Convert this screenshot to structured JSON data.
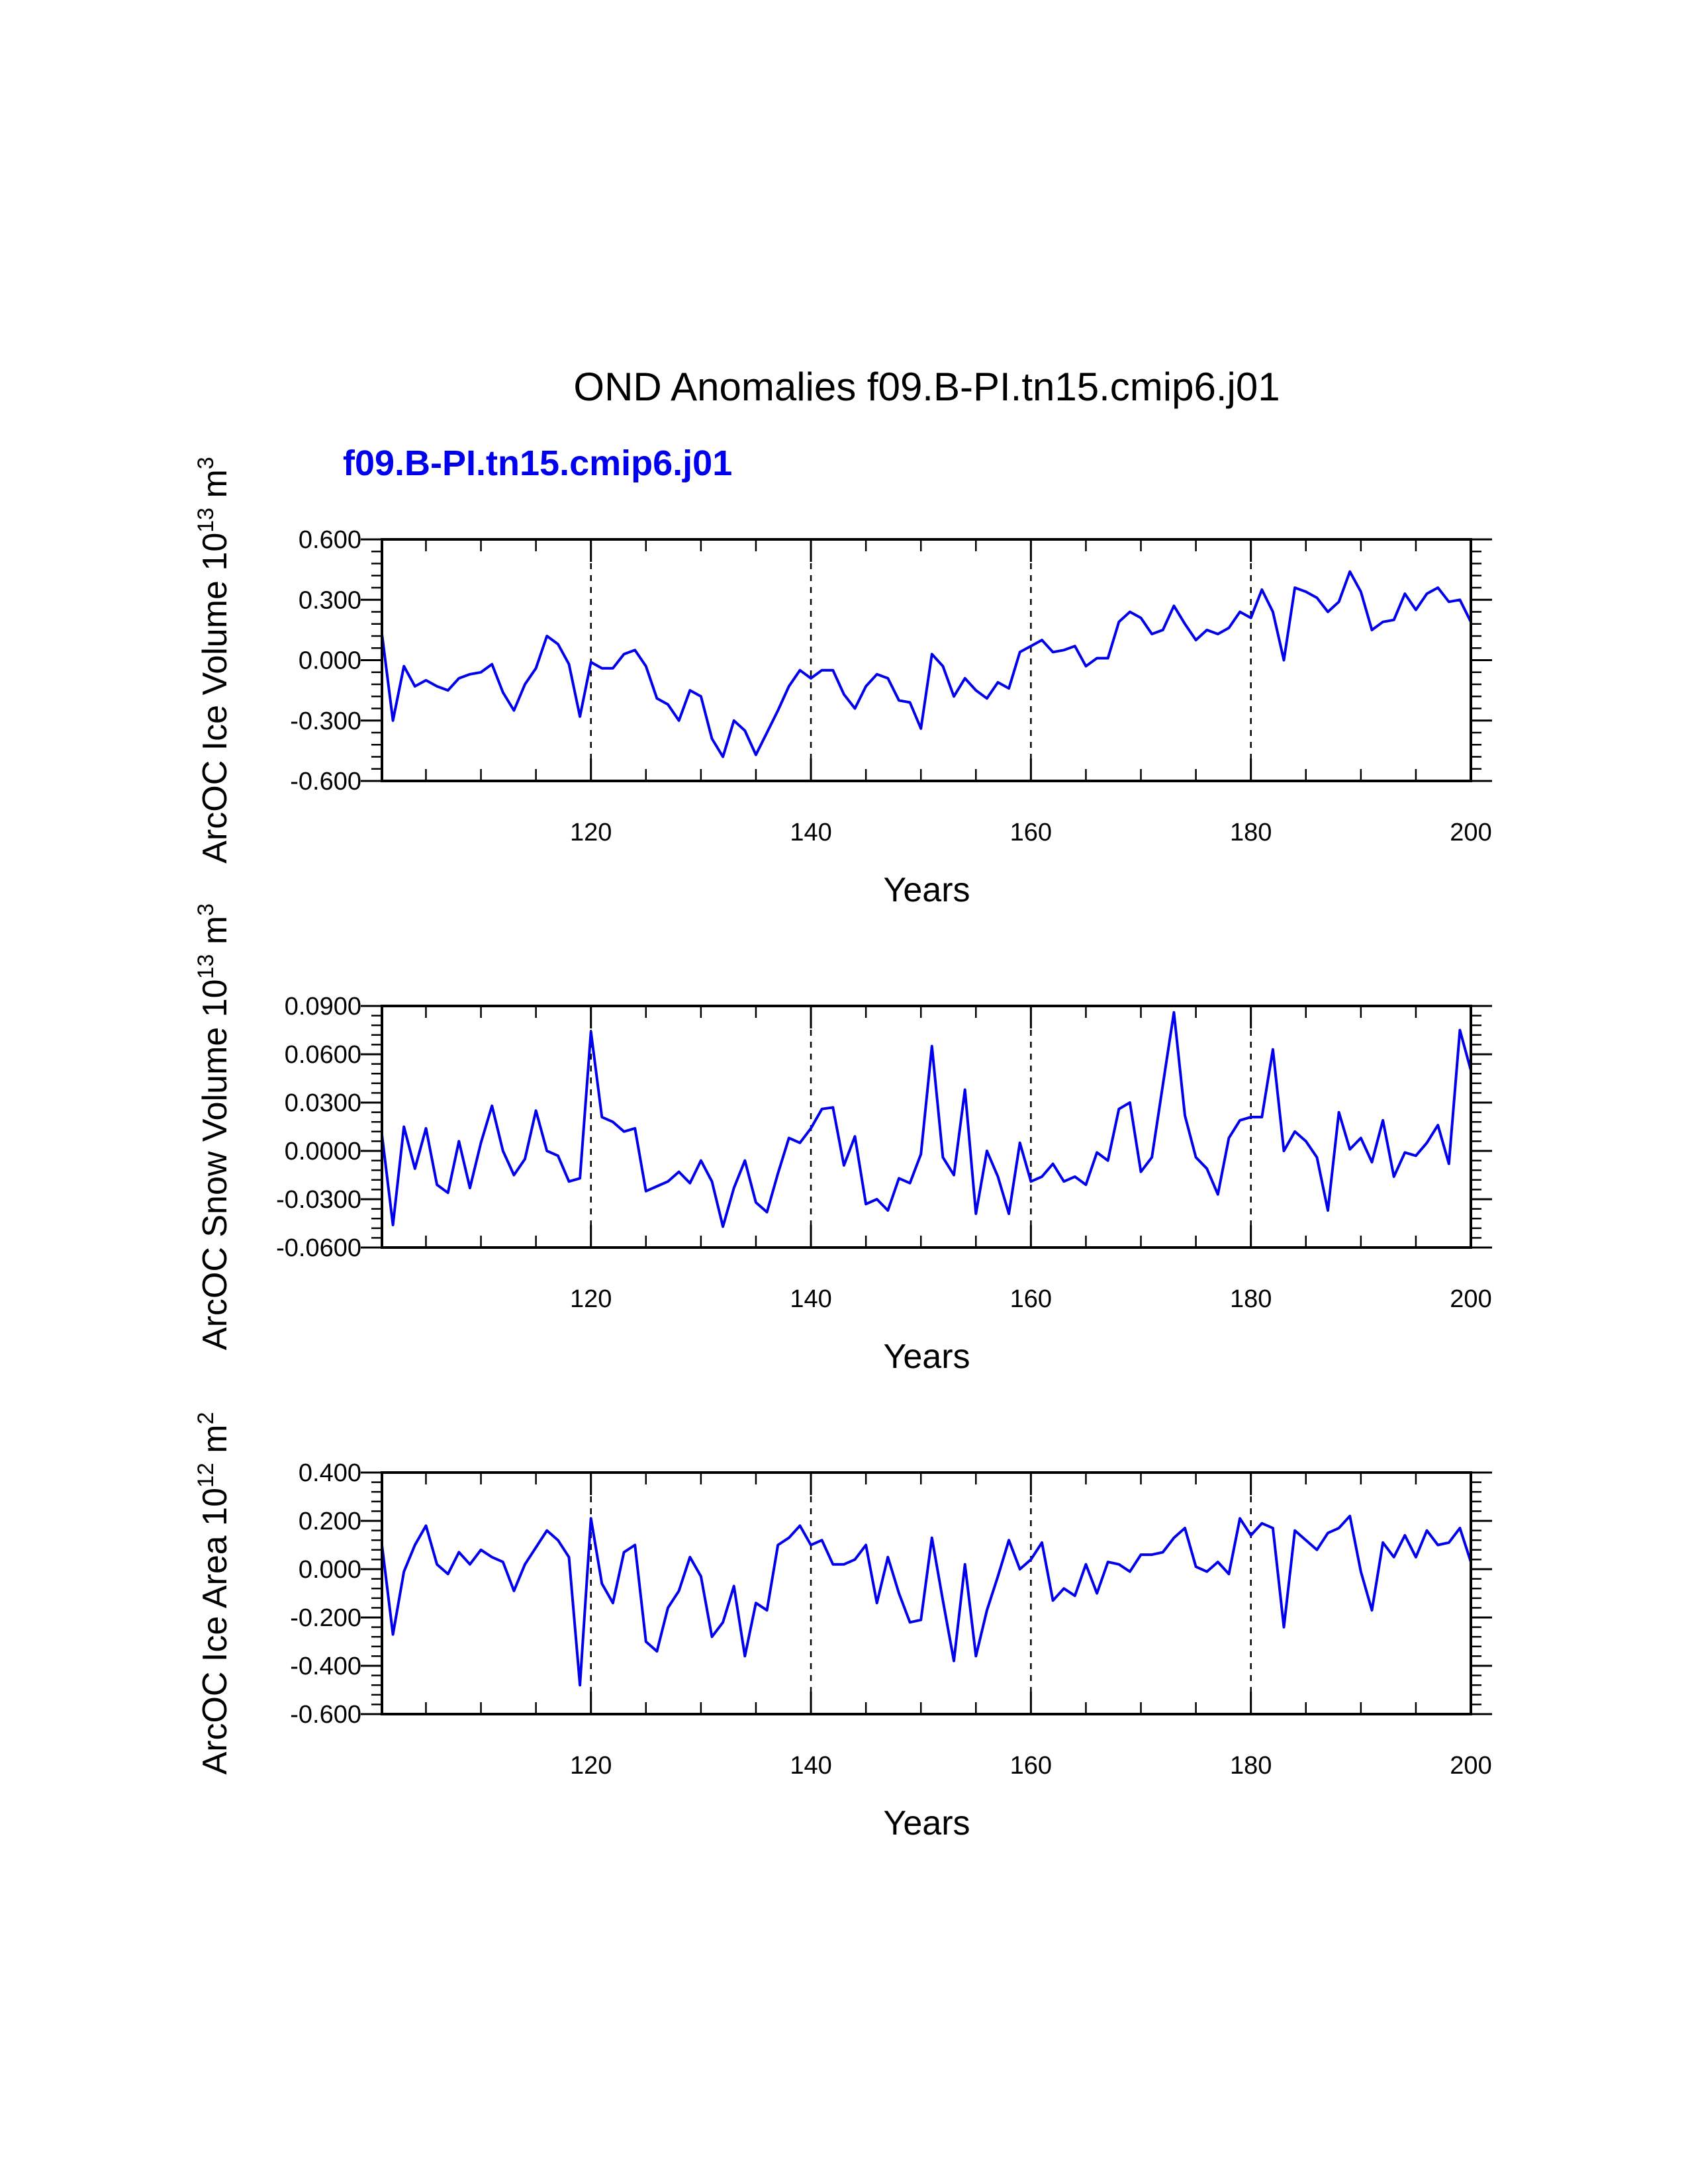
{
  "chart_data": {
    "type": "line",
    "title": "OND Anomalies f09.B-PI.tn15.cmip6.j01",
    "legend_text": "f09.B-PI.tn15.cmip6.j01",
    "legend_position": "top-left",
    "line_color": "#0000ee",
    "x_start": 101,
    "x_end": 200,
    "x_label": "Years",
    "x_ticks": [
      120,
      140,
      160,
      180,
      200
    ],
    "x_tick_labels": [
      "120",
      "140",
      "160",
      "180",
      "200"
    ],
    "reference_lines_x": [
      120,
      140,
      160,
      180
    ],
    "panels": [
      {
        "ylabel_text": "ArcOC Ice Volume 10",
        "ylabel_exp": "13",
        "ylabel_unit": " m",
        "ylabel_unit_exp": "3",
        "ylim": [
          -0.6,
          0.6
        ],
        "y_ticks": [
          -0.6,
          -0.3,
          0.0,
          0.3,
          0.6
        ],
        "y_tick_labels": [
          "-0.600",
          "-0.300",
          "0.000",
          "0.300",
          "0.600"
        ],
        "values": [
          0.13,
          -0.3,
          -0.03,
          -0.13,
          -0.1,
          -0.13,
          -0.15,
          -0.09,
          -0.07,
          -0.06,
          -0.02,
          -0.16,
          -0.25,
          -0.12,
          -0.04,
          0.12,
          0.08,
          -0.02,
          -0.28,
          -0.01,
          -0.04,
          -0.04,
          0.03,
          0.05,
          -0.03,
          -0.19,
          -0.22,
          -0.3,
          -0.15,
          -0.18,
          -0.39,
          -0.48,
          -0.3,
          -0.35,
          -0.47,
          -0.36,
          -0.25,
          -0.13,
          -0.05,
          -0.09,
          -0.05,
          -0.05,
          -0.17,
          -0.24,
          -0.13,
          -0.07,
          -0.09,
          -0.2,
          -0.21,
          -0.34,
          0.03,
          -0.03,
          -0.18,
          -0.09,
          -0.15,
          -0.19,
          -0.11,
          -0.14,
          0.04,
          0.07,
          0.1,
          0.04,
          0.05,
          0.07,
          -0.03,
          0.01,
          0.01,
          0.19,
          0.24,
          0.21,
          0.13,
          0.15,
          0.27,
          0.18,
          0.1,
          0.15,
          0.13,
          0.16,
          0.24,
          0.21,
          0.35,
          0.24,
          0.0,
          0.36,
          0.34,
          0.31,
          0.24,
          0.29,
          0.44,
          0.34,
          0.15,
          0.19,
          0.2,
          0.33,
          0.25,
          0.33,
          0.36,
          0.29,
          0.3,
          0.19
        ]
      },
      {
        "ylabel_text": "ArcOC Snow Volume 10",
        "ylabel_exp": "13",
        "ylabel_unit": " m",
        "ylabel_unit_exp": "3",
        "ylim": [
          -0.06,
          0.09
        ],
        "y_ticks": [
          -0.06,
          -0.03,
          0.0,
          0.03,
          0.06,
          0.09
        ],
        "y_tick_labels": [
          "-0.0600",
          "-0.0300",
          "0.0000",
          "0.0300",
          "0.0600",
          "0.0900"
        ],
        "values": [
          0.01,
          -0.046,
          0.015,
          -0.011,
          0.014,
          -0.021,
          -0.026,
          0.006,
          -0.023,
          0.005,
          0.028,
          0.0,
          -0.015,
          -0.005,
          0.025,
          0.0,
          -0.003,
          -0.019,
          -0.017,
          0.074,
          0.021,
          0.018,
          0.012,
          0.014,
          -0.025,
          -0.022,
          -0.019,
          -0.013,
          -0.02,
          -0.006,
          -0.019,
          -0.047,
          -0.023,
          -0.006,
          -0.032,
          -0.038,
          -0.014,
          0.008,
          0.005,
          0.014,
          0.026,
          0.027,
          -0.009,
          0.009,
          -0.033,
          -0.03,
          -0.037,
          -0.017,
          -0.02,
          -0.002,
          0.065,
          -0.004,
          -0.015,
          0.038,
          -0.039,
          0.0,
          -0.016,
          -0.039,
          0.005,
          -0.019,
          -0.016,
          -0.008,
          -0.019,
          -0.016,
          -0.021,
          -0.001,
          -0.006,
          0.026,
          0.03,
          -0.013,
          -0.004,
          0.041,
          0.086,
          0.022,
          -0.004,
          -0.011,
          -0.027,
          0.008,
          0.019,
          0.021,
          0.021,
          0.063,
          0.0,
          0.012,
          0.006,
          -0.004,
          -0.037,
          0.024,
          0.001,
          0.008,
          -0.007,
          0.019,
          -0.016,
          -0.001,
          -0.003,
          0.005,
          0.016,
          -0.008,
          0.075,
          0.05
        ]
      },
      {
        "ylabel_text": "ArcOC Ice Area 10",
        "ylabel_exp": "12",
        "ylabel_unit": " m",
        "ylabel_unit_exp": "2",
        "ylim": [
          -0.6,
          0.4
        ],
        "y_ticks": [
          -0.6,
          -0.4,
          -0.2,
          0.0,
          0.2,
          0.4
        ],
        "y_tick_labels": [
          "-0.600",
          "-0.400",
          "-0.200",
          "0.000",
          "0.200",
          "0.400"
        ],
        "values": [
          0.1,
          -0.27,
          -0.01,
          0.1,
          0.18,
          0.02,
          -0.02,
          0.07,
          0.02,
          0.08,
          0.05,
          0.03,
          -0.09,
          0.02,
          0.09,
          0.16,
          0.12,
          0.05,
          -0.48,
          0.21,
          -0.06,
          -0.14,
          0.07,
          0.1,
          -0.3,
          -0.34,
          -0.16,
          -0.09,
          0.05,
          -0.03,
          -0.28,
          -0.22,
          -0.07,
          -0.36,
          -0.14,
          -0.17,
          0.1,
          0.13,
          0.18,
          0.1,
          0.12,
          0.02,
          0.02,
          0.04,
          0.1,
          -0.14,
          0.05,
          -0.1,
          -0.22,
          -0.21,
          0.13,
          -0.13,
          -0.38,
          0.02,
          -0.36,
          -0.17,
          -0.03,
          0.12,
          0.0,
          0.04,
          0.11,
          -0.13,
          -0.08,
          -0.11,
          0.02,
          -0.1,
          0.03,
          0.02,
          -0.01,
          0.06,
          0.06,
          0.07,
          0.13,
          0.17,
          0.01,
          -0.01,
          0.03,
          -0.02,
          0.21,
          0.14,
          0.19,
          0.17,
          -0.24,
          0.16,
          0.12,
          0.08,
          0.15,
          0.17,
          0.22,
          -0.01,
          -0.17,
          0.11,
          0.05,
          0.14,
          0.05,
          0.16,
          0.1,
          0.11,
          0.17,
          0.03
        ]
      }
    ]
  }
}
